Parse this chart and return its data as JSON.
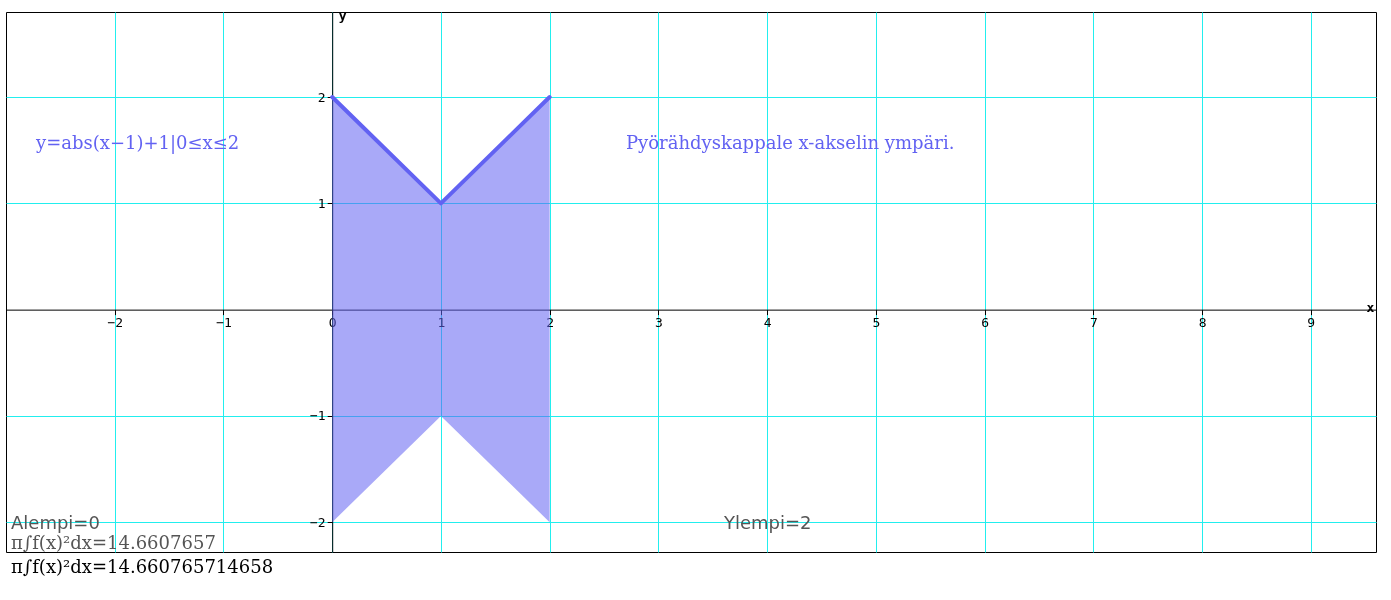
{
  "chart_data": {
    "type": "line",
    "xlabel": "x",
    "ylabel": "y",
    "x": [
      0,
      1,
      2
    ],
    "series": [
      {
        "color": "#6262f2",
        "values": [
          2,
          1,
          2
        ],
        "lower": [
          -2,
          -1,
          -2
        ],
        "upper": [
          2,
          1,
          2
        ]
      }
    ],
    "xlim": [
      -3,
      9.6
    ],
    "ylim": [
      -2.28,
      2.8
    ],
    "xticks": [
      -2,
      -1,
      {
        "value": 0,
        "label": "O"
      },
      1,
      2,
      3,
      4,
      5,
      6,
      7,
      8,
      9
    ],
    "yticks": [
      -2,
      -1,
      1,
      2
    ],
    "grid": true,
    "marker": "none",
    "line_style": "solid",
    "annotations": [
      "y=abs(x−1)+1|0≤x≤2",
      "Pyörähdyskappale x-akselin ympäri.",
      "Alempi=0",
      "π∫f(x)²dx=14.6607657",
      "Ylempi=2",
      "π∫f(x)²dx=14.660765714658"
    ]
  }
}
